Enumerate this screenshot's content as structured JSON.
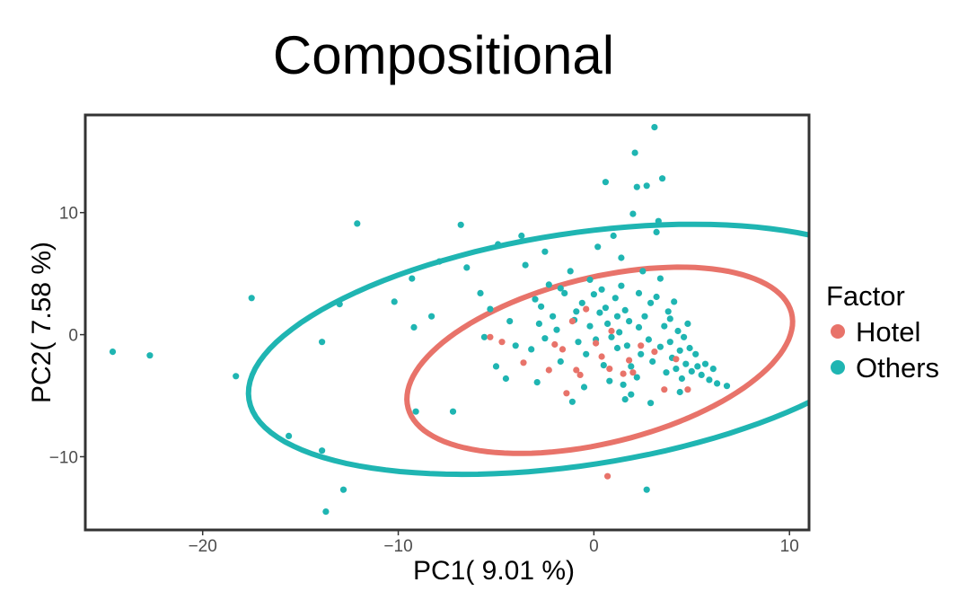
{
  "chart_data": {
    "type": "scatter",
    "title": "Compositional",
    "xlabel": "PC1( 9.01 %)",
    "ylabel": "PC2( 7.58 %)",
    "xlim": [
      -26,
      11
    ],
    "ylim": [
      -16,
      18
    ],
    "xticks": [
      -20,
      -10,
      0,
      10
    ],
    "xtick_labels": [
      "−20",
      "−10",
      "0",
      "10"
    ],
    "yticks": [
      -10,
      0,
      10
    ],
    "ytick_labels": [
      "−10",
      "0",
      "10"
    ],
    "grid": false,
    "legend": {
      "title": "Factor",
      "placement": "right"
    },
    "series": [
      {
        "name": "Hotel",
        "color": "#E8736A",
        "points": [
          [
            -5.3,
            -0.2
          ],
          [
            -4.7,
            -0.6
          ],
          [
            -3.6,
            -2.3
          ],
          [
            -2.3,
            -2.9
          ],
          [
            -2.0,
            -0.8
          ],
          [
            -1.6,
            -1.2
          ],
          [
            -1.4,
            -4.8
          ],
          [
            -0.9,
            -2.9
          ],
          [
            -0.7,
            -3.3
          ],
          [
            -0.4,
            2.1
          ],
          [
            0.1,
            -0.7
          ],
          [
            0.4,
            -1.8
          ],
          [
            0.8,
            -2.8
          ],
          [
            1.5,
            -3.2
          ],
          [
            1.8,
            -2.1
          ],
          [
            2.0,
            -3.1
          ],
          [
            2.4,
            -0.9
          ],
          [
            3.1,
            -1.4
          ],
          [
            3.6,
            -4.5
          ],
          [
            4.2,
            -2.0
          ],
          [
            4.8,
            -4.5
          ],
          [
            0.7,
            -11.6
          ],
          [
            -1.1,
            1.1
          ],
          [
            0.9,
            0.3
          ]
        ],
        "ellipse": {
          "center": [
            0.3,
            -2.1
          ],
          "rx": 10.7,
          "ry": 6.4,
          "rotation_deg": 29
        }
      },
      {
        "name": "Others",
        "color": "#1FB5B2",
        "points": [
          [
            -24.6,
            -1.4
          ],
          [
            -22.7,
            -1.7
          ],
          [
            -18.3,
            -3.4
          ],
          [
            -17.5,
            3.0
          ],
          [
            -15.6,
            -8.3
          ],
          [
            -13.9,
            -0.6
          ],
          [
            -13.9,
            -9.5
          ],
          [
            -13.7,
            -14.5
          ],
          [
            -13.0,
            2.5
          ],
          [
            -12.8,
            -12.7
          ],
          [
            -12.1,
            9.1
          ],
          [
            -10.2,
            2.7
          ],
          [
            -9.3,
            4.6
          ],
          [
            -9.2,
            0.6
          ],
          [
            -9.1,
            -6.3
          ],
          [
            -8.3,
            1.5
          ],
          [
            -7.9,
            6.0
          ],
          [
            -7.2,
            -6.3
          ],
          [
            -6.8,
            9.0
          ],
          [
            -6.5,
            5.5
          ],
          [
            -5.8,
            3.4
          ],
          [
            -5.6,
            -0.2
          ],
          [
            -5.3,
            2.1
          ],
          [
            -5.0,
            -2.6
          ],
          [
            -4.9,
            7.4
          ],
          [
            -4.5,
            -3.6
          ],
          [
            -4.3,
            1.1
          ],
          [
            -4.0,
            -0.9
          ],
          [
            -3.7,
            8.1
          ],
          [
            -3.5,
            5.7
          ],
          [
            -3.2,
            -1.2
          ],
          [
            -2.9,
            -3.9
          ],
          [
            -2.7,
            2.3
          ],
          [
            -2.5,
            6.8
          ],
          [
            -2.3,
            4.1
          ],
          [
            -2.1,
            1.5
          ],
          [
            -1.9,
            0.4
          ],
          [
            -1.7,
            -2.2
          ],
          [
            -1.5,
            3.4
          ],
          [
            -1.2,
            5.2
          ],
          [
            -1.0,
            1.2
          ],
          [
            -0.8,
            -0.6
          ],
          [
            -0.6,
            2.6
          ],
          [
            -0.4,
            -1.6
          ],
          [
            -0.2,
            0.7
          ],
          [
            0.0,
            3.3
          ],
          [
            0.1,
            -0.4
          ],
          [
            0.2,
            7.2
          ],
          [
            0.3,
            1.8
          ],
          [
            0.5,
            -2.5
          ],
          [
            0.6,
            12.5
          ],
          [
            0.7,
            0.9
          ],
          [
            0.9,
            -0.2
          ],
          [
            1.0,
            8.1
          ],
          [
            1.1,
            3.0
          ],
          [
            1.2,
            -1.1
          ],
          [
            1.3,
            0.2
          ],
          [
            1.4,
            6.3
          ],
          [
            1.5,
            -4.1
          ],
          [
            1.6,
            2.0
          ],
          [
            1.7,
            -0.9
          ],
          [
            1.8,
            1.1
          ],
          [
            1.9,
            -2.6
          ],
          [
            2.0,
            9.9
          ],
          [
            2.1,
            14.9
          ],
          [
            2.2,
            12.1
          ],
          [
            2.3,
            0.6
          ],
          [
            2.4,
            -1.6
          ],
          [
            2.5,
            5.2
          ],
          [
            2.6,
            1.5
          ],
          [
            2.7,
            12.2
          ],
          [
            2.8,
            -0.4
          ],
          [
            2.9,
            2.6
          ],
          [
            3.0,
            -2.2
          ],
          [
            3.1,
            17.0
          ],
          [
            3.2,
            8.4
          ],
          [
            3.3,
            9.3
          ],
          [
            3.4,
            -1.0
          ],
          [
            3.5,
            12.8
          ],
          [
            3.6,
            0.7
          ],
          [
            3.7,
            -3.1
          ],
          [
            3.8,
            1.9
          ],
          [
            3.9,
            -0.6
          ],
          [
            4.0,
            -1.9
          ],
          [
            4.1,
            2.7
          ],
          [
            4.2,
            -2.8
          ],
          [
            4.3,
            0.3
          ],
          [
            4.4,
            -1.3
          ],
          [
            4.5,
            -3.6
          ],
          [
            4.6,
            -0.2
          ],
          [
            4.7,
            -2.4
          ],
          [
            4.8,
            0.9
          ],
          [
            5.0,
            -3.0
          ],
          [
            5.2,
            -1.6
          ],
          [
            5.3,
            -2.6
          ],
          [
            5.5,
            -3.3
          ],
          [
            5.7,
            -2.4
          ],
          [
            5.9,
            -3.7
          ],
          [
            6.1,
            -2.8
          ],
          [
            6.3,
            -4.0
          ],
          [
            6.8,
            -4.2
          ],
          [
            2.7,
            -12.7
          ],
          [
            -0.2,
            4.5
          ],
          [
            1.4,
            4.0
          ],
          [
            2.3,
            3.4
          ],
          [
            -1.7,
            3.8
          ],
          [
            0.4,
            3.7
          ],
          [
            -3.0,
            2.9
          ],
          [
            3.4,
            4.6
          ],
          [
            0.8,
            -3.8
          ],
          [
            -2.5,
            -0.3
          ],
          [
            1.9,
            -4.9
          ],
          [
            -1.1,
            -5.5
          ],
          [
            4.4,
            -4.7
          ],
          [
            2.9,
            -5.6
          ],
          [
            -0.5,
            -4.3
          ],
          [
            3.2,
            3.1
          ],
          [
            1.2,
            1.5
          ],
          [
            -0.9,
            1.9
          ],
          [
            0.6,
            2.2
          ],
          [
            2.2,
            -3.5
          ],
          [
            4.9,
            -1.1
          ],
          [
            -2.8,
            0.9
          ],
          [
            1.6,
            -5.3
          ],
          [
            3.9,
            1.3
          ]
        ],
        "ellipse": {
          "center": [
            -0.8,
            -1.2
          ],
          "rx": 17.4,
          "ry": 9.3,
          "rotation_deg": 17
        }
      }
    ]
  }
}
